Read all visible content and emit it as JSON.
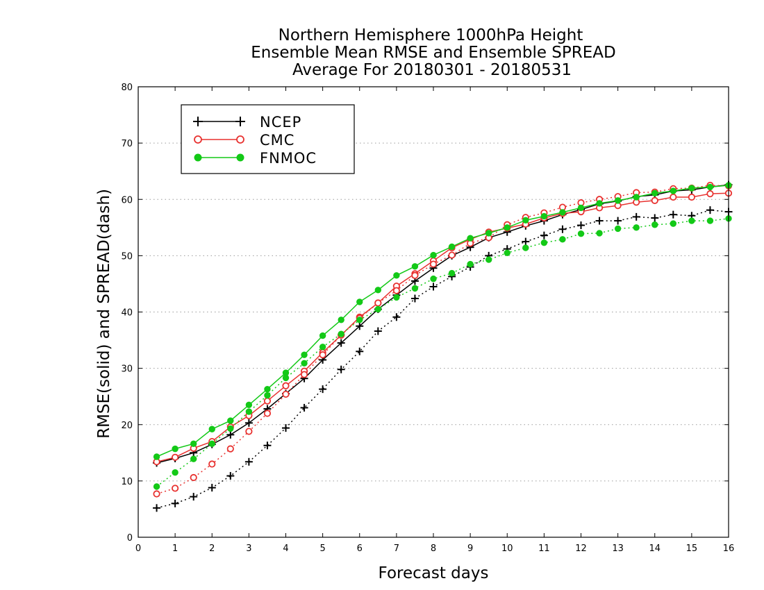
{
  "chart_data": {
    "type": "line",
    "title_lines": [
      "Northern Hemisphere 1000hPa Height",
      "Ensemble Mean RMSE and Ensemble SPREAD",
      "Average For 20180301 - 20180531"
    ],
    "xlabel": "Forecast days",
    "ylabel": "RMSE(solid) and SPREAD(dash)",
    "xlim": [
      0,
      16
    ],
    "ylim": [
      0,
      80
    ],
    "x_ticks": [
      "0",
      "1",
      "2",
      "3",
      "4",
      "5",
      "6",
      "7",
      "8",
      "9",
      "10",
      "11",
      "12",
      "13",
      "14",
      "15",
      "16"
    ],
    "y_ticks": [
      "0",
      "10",
      "20",
      "30",
      "40",
      "50",
      "60",
      "70",
      "80"
    ],
    "grid": "horizontal dotted",
    "legend_position": "top-left",
    "x": [
      0.5,
      1,
      1.5,
      2,
      2.5,
      3,
      3.5,
      4,
      4.5,
      5,
      5.5,
      6,
      6.5,
      7,
      7.5,
      8,
      8.5,
      9,
      9.5,
      10,
      10.5,
      11,
      11.5,
      12,
      12.5,
      13,
      13.5,
      14,
      14.5,
      15,
      15.5,
      16
    ],
    "series": [
      {
        "name": "NCEP",
        "metric": "RMSE",
        "style": "solid",
        "marker": "plus",
        "color": "#000000",
        "values": [
          13.2,
          14.0,
          15.0,
          16.5,
          18.2,
          20.3,
          22.8,
          25.5,
          28.2,
          31.5,
          34.5,
          37.5,
          40.5,
          43.0,
          45.5,
          47.8,
          50.0,
          51.5,
          53.2,
          54.2,
          55.3,
          56.2,
          57.3,
          58.2,
          59.2,
          59.7,
          60.5,
          60.8,
          61.5,
          61.7,
          62.2,
          62.6
        ]
      },
      {
        "name": "NCEP",
        "metric": "SPREAD",
        "style": "dash",
        "marker": "plus",
        "color": "#000000",
        "values": [
          5.2,
          6.0,
          7.2,
          8.8,
          10.9,
          13.4,
          16.3,
          19.4,
          23.0,
          26.3,
          29.8,
          33.0,
          36.6,
          39.1,
          42.4,
          44.5,
          46.3,
          48.0,
          50.0,
          51.2,
          52.5,
          53.6,
          54.7,
          55.4,
          56.2,
          56.2,
          56.9,
          56.7,
          57.3,
          57.1,
          58.1,
          57.8
        ]
      },
      {
        "name": "CMC",
        "metric": "RMSE",
        "style": "solid",
        "marker": "open-circle",
        "color": "#e8312f",
        "values": [
          13.4,
          14.2,
          15.8,
          17.0,
          19.6,
          21.6,
          24.2,
          26.9,
          29.5,
          32.8,
          35.9,
          39.1,
          41.6,
          44.6,
          46.8,
          49.1,
          51.4,
          52.9,
          54.2,
          54.9,
          55.6,
          56.7,
          57.5,
          57.8,
          58.5,
          58.9,
          59.5,
          59.8,
          60.4,
          60.4,
          61.0,
          61.1
        ]
      },
      {
        "name": "CMC",
        "metric": "SPREAD",
        "style": "dash",
        "marker": "open-circle",
        "color": "#e8312f",
        "values": [
          7.7,
          8.7,
          10.6,
          13.0,
          15.7,
          18.8,
          22.0,
          25.4,
          28.9,
          32.4,
          35.9,
          38.9,
          41.6,
          43.8,
          46.5,
          48.5,
          50.1,
          52.2,
          53.2,
          55.5,
          56.8,
          57.6,
          58.6,
          59.4,
          60.0,
          60.5,
          61.2,
          61.3,
          61.9,
          62.0,
          62.5,
          62.4
        ]
      },
      {
        "name": "FNMOC",
        "metric": "RMSE",
        "style": "solid",
        "marker": "filled-circle",
        "color": "#13c917",
        "values": [
          14.3,
          15.7,
          16.6,
          19.2,
          20.7,
          23.5,
          26.3,
          29.2,
          32.4,
          35.8,
          38.6,
          41.8,
          43.9,
          46.5,
          48.1,
          50.1,
          51.6,
          53.1,
          54.0,
          55.0,
          56.3,
          57.0,
          57.7,
          58.5,
          59.3,
          59.8,
          60.4,
          61.1,
          61.5,
          62.0,
          62.2,
          62.5
        ]
      },
      {
        "name": "FNMOC",
        "metric": "SPREAD",
        "style": "dash",
        "marker": "filled-circle",
        "color": "#13c917",
        "values": [
          9.0,
          11.5,
          13.9,
          16.6,
          19.3,
          22.3,
          25.2,
          28.3,
          30.9,
          33.8,
          36.1,
          38.6,
          40.5,
          42.6,
          44.2,
          45.9,
          46.9,
          48.5,
          49.3,
          50.5,
          51.4,
          52.3,
          52.9,
          53.9,
          54.0,
          54.8,
          55.0,
          55.5,
          55.7,
          56.2,
          56.2,
          56.6
        ]
      }
    ],
    "legend": [
      {
        "label": "NCEP",
        "marker": "plus",
        "color": "#000000"
      },
      {
        "label": "CMC",
        "marker": "open-circle",
        "color": "#e8312f"
      },
      {
        "label": "FNMOC",
        "marker": "filled-circle",
        "color": "#13c917"
      }
    ]
  }
}
